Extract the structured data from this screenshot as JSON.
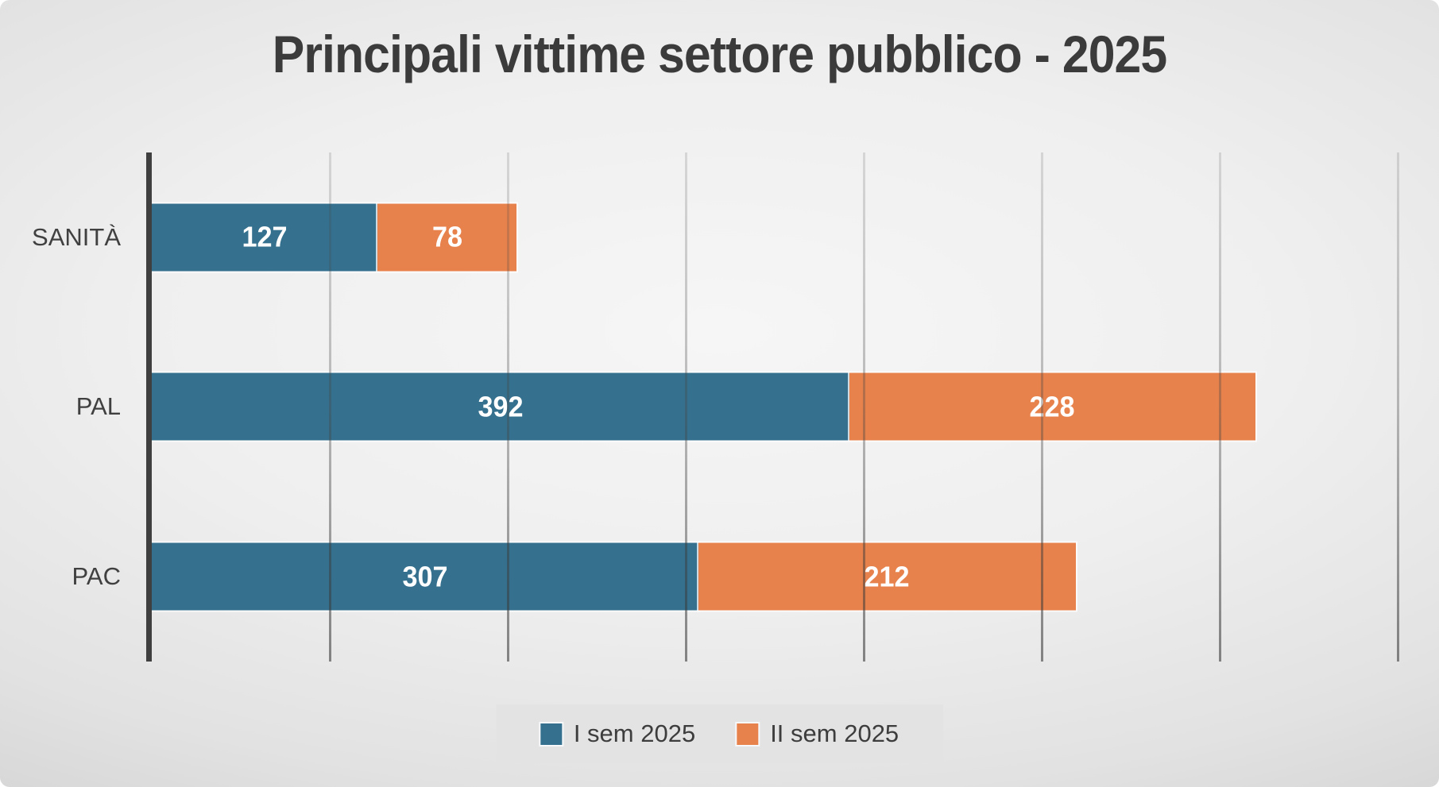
{
  "title": "Principali vittime settore pubblico - 2025",
  "chart_data": {
    "type": "bar",
    "orientation": "horizontal",
    "stacked": true,
    "title": "Principali vittime settore pubblico - 2025",
    "categories": [
      "SANITÀ",
      "PAL",
      "PAC"
    ],
    "series": [
      {
        "name": "I sem 2025",
        "color": "#35718e",
        "values": [
          127,
          392,
          307
        ]
      },
      {
        "name": "II sem 2025",
        "color": "#e8824c",
        "values": [
          78,
          228,
          212
        ]
      }
    ],
    "totals": [
      205,
      620,
      519
    ],
    "xlabel": "",
    "ylabel": "",
    "xlim": [
      0,
      700
    ],
    "gridline_interval": 100,
    "grid": true,
    "legend_position": "bottom",
    "value_labels": "inside-center",
    "value_label_color": "#ffffff",
    "axis_line_color": "#3f3f3f",
    "gridline_color": "#8a8a8a",
    "legend_background": "#e3e3e3",
    "title_color": "#3b3b3b",
    "category_label_color": "#404040"
  }
}
